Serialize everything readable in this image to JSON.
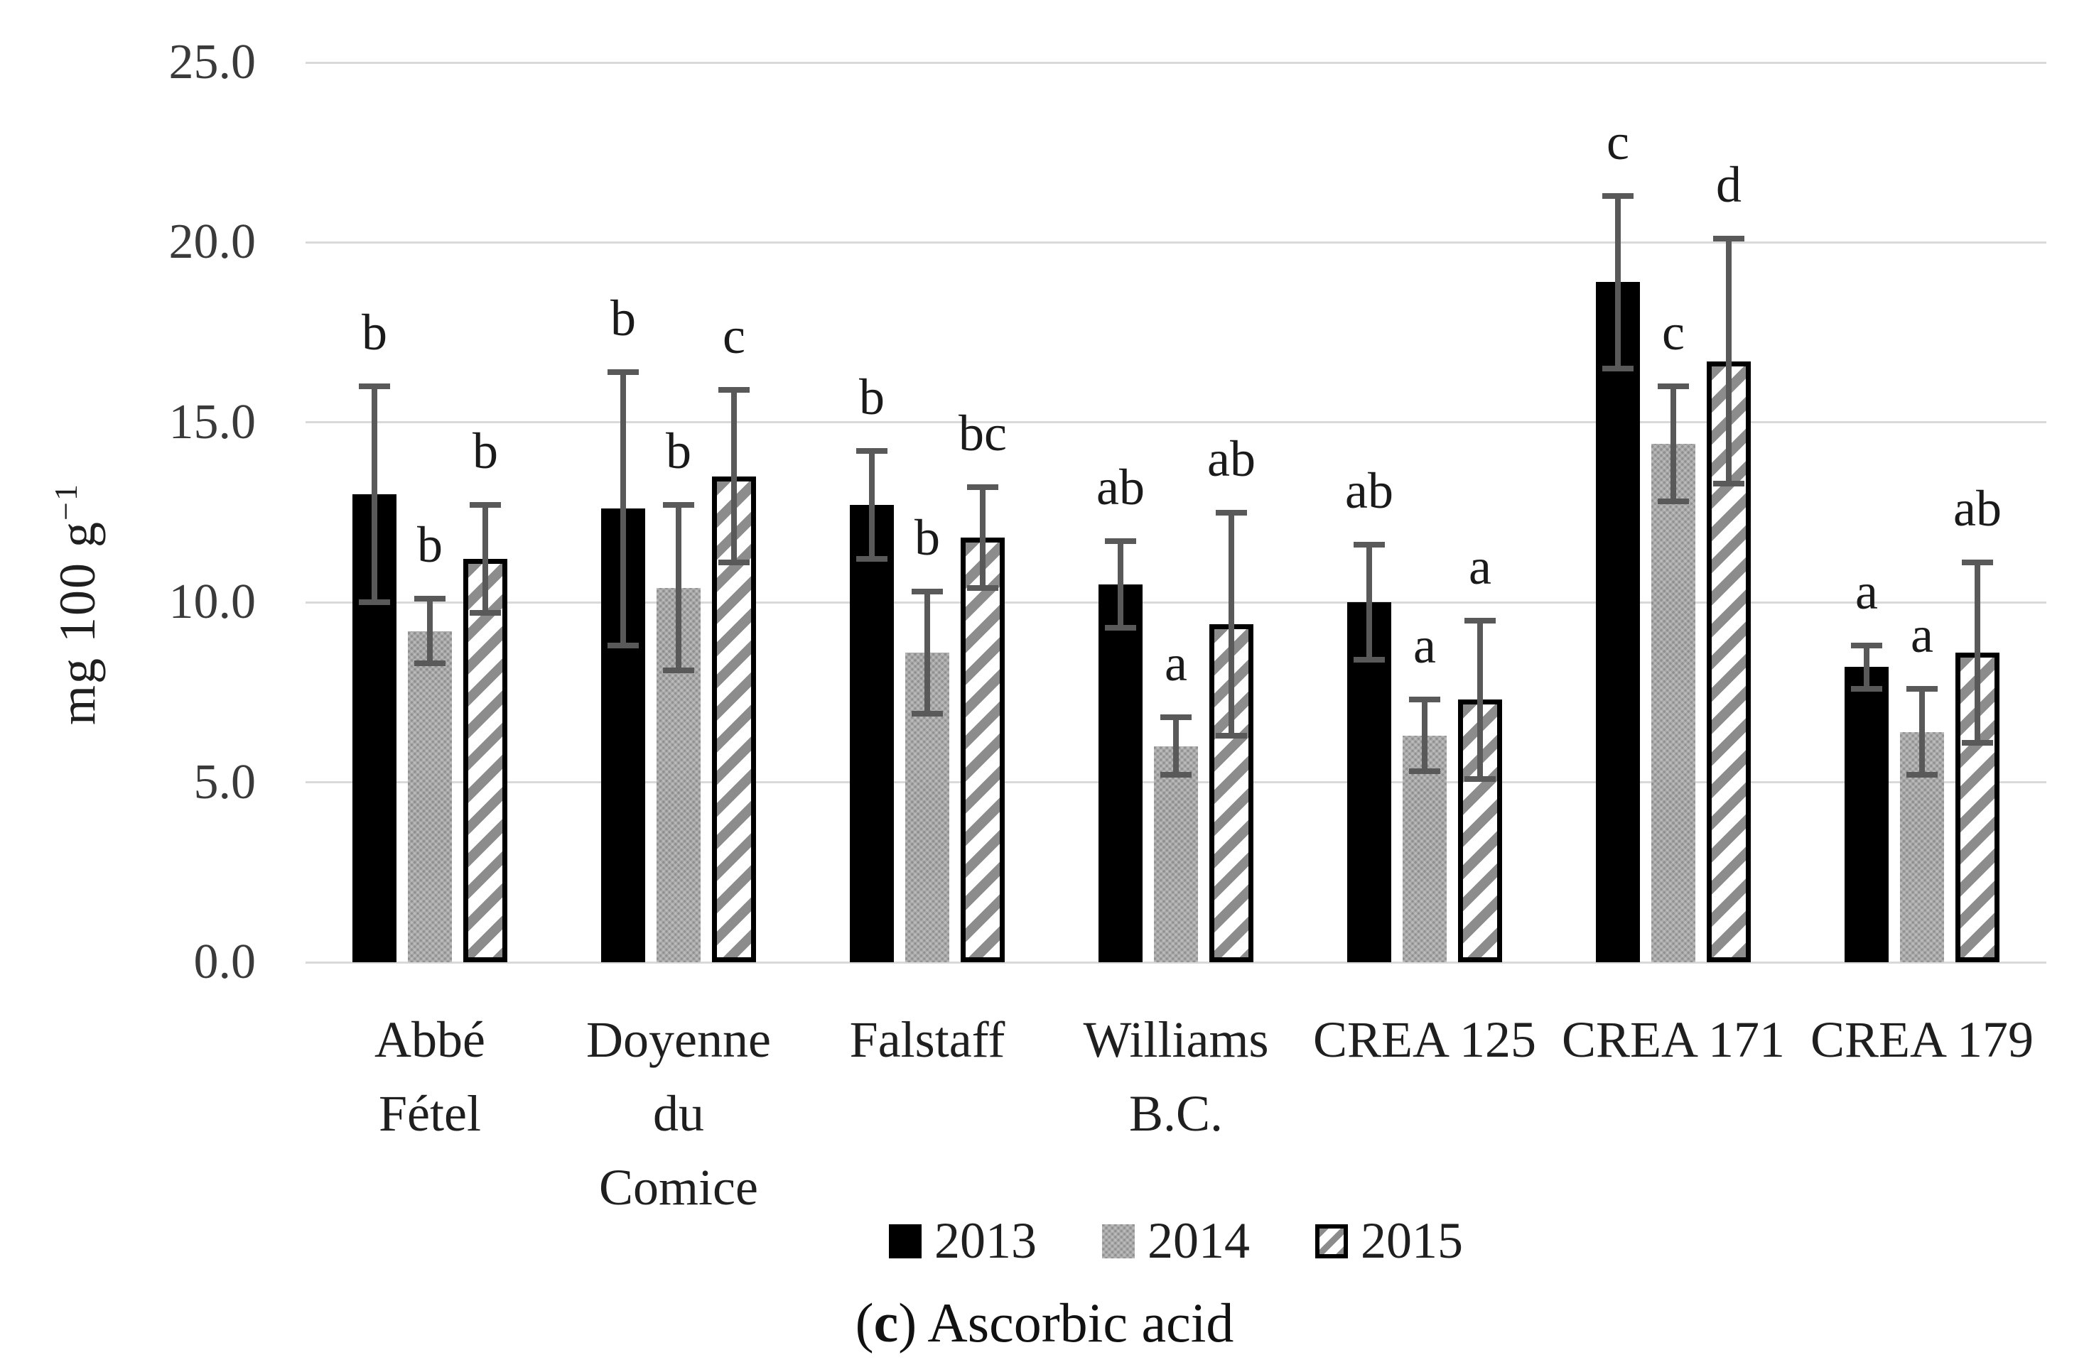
{
  "chart_data": {
    "type": "bar",
    "title": "",
    "xlabel": "",
    "ylabel": "mg 100 g⁻¹",
    "ylabel_base": "mg 100 g",
    "ylabel_exp": "−1",
    "ylim": [
      0,
      25
    ],
    "ytick_step": 5,
    "yticks": [
      "25.0",
      "20.0",
      "15.0",
      "10.0",
      "5.0",
      "0.0"
    ],
    "grid": true,
    "legend_position": "bottom",
    "caption": {
      "pre": "(",
      "letter": "c",
      "post": ") Ascorbic acid"
    },
    "categories": [
      "Abbé Fétel",
      "Doyenne du Comice",
      "Falstaff",
      "Williams B.C.",
      "CREA 125",
      "CREA 171",
      "CREA 179"
    ],
    "category_lines": [
      [
        "Abbé",
        "Fétel"
      ],
      [
        "Doyenne",
        "du",
        "Comice"
      ],
      [
        "Falstaff"
      ],
      [
        "Williams",
        "B.C."
      ],
      [
        "CREA 125"
      ],
      [
        "CREA 171"
      ],
      [
        "CREA 179"
      ]
    ],
    "series": [
      {
        "name": "2013",
        "style": "solid-black",
        "values": [
          13.0,
          12.6,
          12.7,
          10.5,
          10.0,
          18.9,
          8.2
        ],
        "errors": [
          3.0,
          3.8,
          1.5,
          1.2,
          1.6,
          2.4,
          0.6
        ],
        "letters": [
          "b",
          "b",
          "b",
          "ab",
          "ab",
          "c",
          "a"
        ]
      },
      {
        "name": "2014",
        "style": "textured-gray",
        "values": [
          9.2,
          10.4,
          8.6,
          6.0,
          6.3,
          14.4,
          6.4
        ],
        "errors": [
          0.9,
          2.3,
          1.7,
          0.8,
          1.0,
          1.6,
          1.2
        ],
        "letters": [
          "b",
          "b",
          "b",
          "a",
          "a",
          "c",
          "a"
        ]
      },
      {
        "name": "2015",
        "style": "hatched",
        "values": [
          11.2,
          13.5,
          11.8,
          9.4,
          7.3,
          16.7,
          8.6
        ],
        "errors": [
          1.5,
          2.4,
          1.4,
          3.1,
          2.2,
          3.4,
          2.5
        ],
        "letters": [
          "b",
          "c",
          "bc",
          "ab",
          "a",
          "d",
          "ab"
        ]
      }
    ]
  },
  "colors": {
    "bar_2013": "#000000",
    "bar_2014": "#8f8f8f",
    "bar_2015_hatch": "#8c8c8c",
    "bar_2015_bg": "#ffffff",
    "bar_2015_border": "#000000",
    "error_bar": "#595959",
    "gridline": "#d9d9d9",
    "text": "#1a1a1a"
  }
}
